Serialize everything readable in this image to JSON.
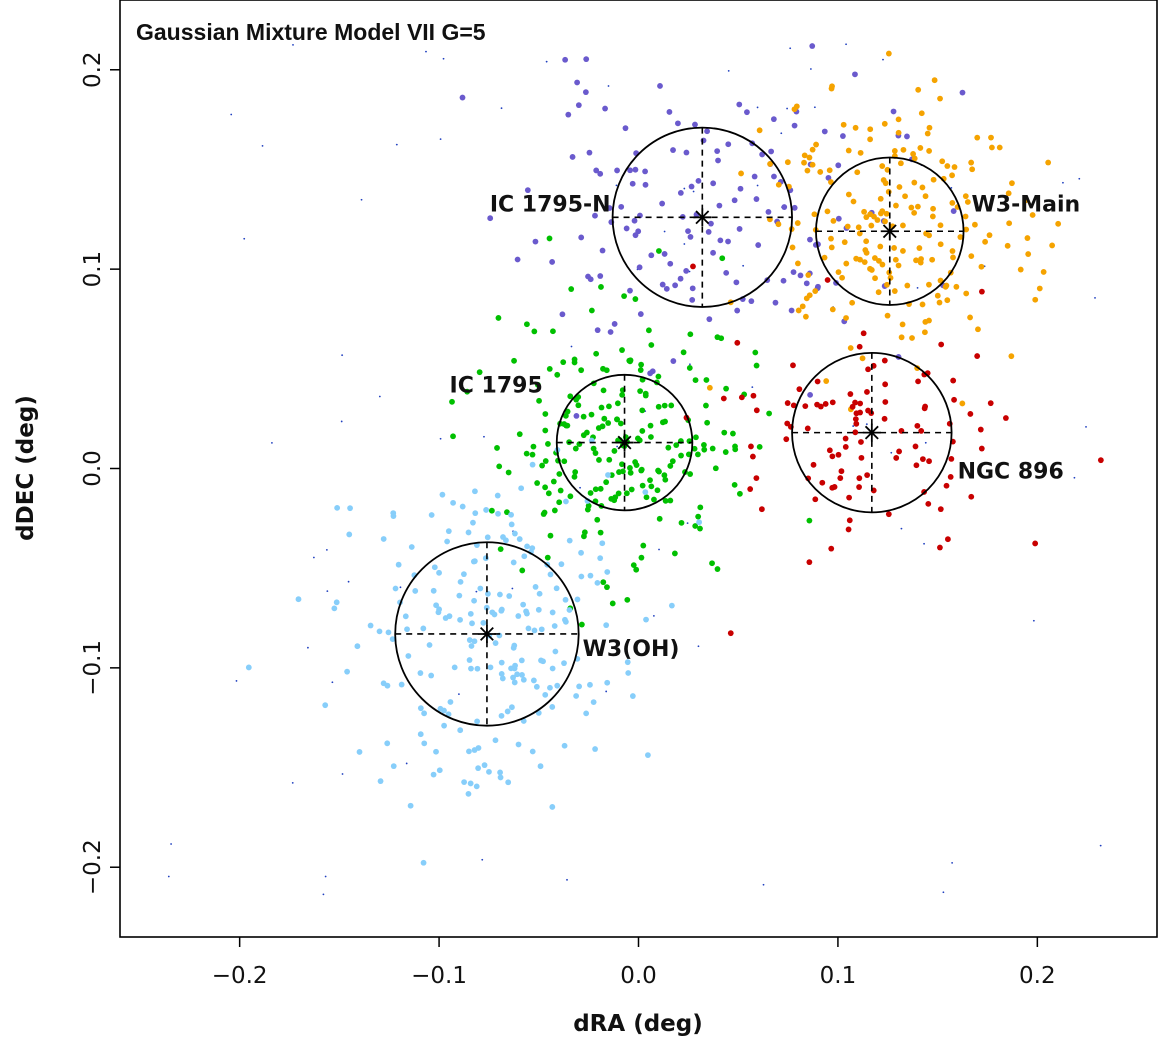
{
  "chart_data": {
    "type": "scatter",
    "title": "Gaussian Mixture Model VII G=5",
    "xlabel": "dRA (deg)",
    "ylabel": "dDEC (deg)",
    "xlim": [
      -0.26,
      0.26
    ],
    "ylim": [
      -0.235,
      0.235
    ],
    "x_ticks": [
      -0.2,
      -0.1,
      0.0,
      0.1,
      0.2
    ],
    "x_tick_labels": [
      "−0.2",
      "−0.1",
      "0.0",
      "0.1",
      "0.2"
    ],
    "y_ticks": [
      -0.2,
      -0.1,
      0.0,
      0.1,
      0.2
    ],
    "y_tick_labels": [
      "−0.2",
      "−0.1",
      "0.0",
      "0.1",
      "0.2"
    ],
    "grid": false,
    "legend": "none",
    "noise_color": "#1f3fbf",
    "clusters": [
      {
        "name": "IC 1795-N",
        "color": "#6a5acd",
        "center": [
          0.032,
          0.126
        ],
        "radius": 0.045,
        "spread": [
          0.045,
          0.035
        ],
        "count": 150,
        "seed": 11,
        "label_anchor": "end",
        "label_xy": [
          -0.014,
          0.129
        ]
      },
      {
        "name": "W3-Main",
        "color": "#f5a300",
        "center": [
          0.126,
          0.119
        ],
        "radius": 0.037,
        "spread": [
          0.035,
          0.035
        ],
        "count": 210,
        "seed": 23,
        "label_anchor": "start",
        "label_xy": [
          0.167,
          0.129
        ]
      },
      {
        "name": "IC 1795",
        "color": "#00c000",
        "center": [
          -0.007,
          0.013
        ],
        "radius": 0.034,
        "spread": [
          0.032,
          0.033
        ],
        "count": 230,
        "seed": 37,
        "label_anchor": "end",
        "label_xy": [
          -0.048,
          0.038
        ]
      },
      {
        "name": "NGC 896",
        "color": "#c80000",
        "center": [
          0.117,
          0.018
        ],
        "radius": 0.04,
        "spread": [
          0.035,
          0.03
        ],
        "count": 110,
        "seed": 41,
        "label_anchor": "start",
        "label_xy": [
          0.16,
          -0.005
        ]
      },
      {
        "name": "W3(OH)",
        "color": "#87cefa",
        "center": [
          -0.076,
          -0.083
        ],
        "radius": 0.046,
        "spread": [
          0.035,
          0.04
        ],
        "count": 220,
        "seed": 53,
        "label_anchor": "start",
        "label_xy": [
          -0.028,
          -0.094
        ]
      }
    ]
  }
}
